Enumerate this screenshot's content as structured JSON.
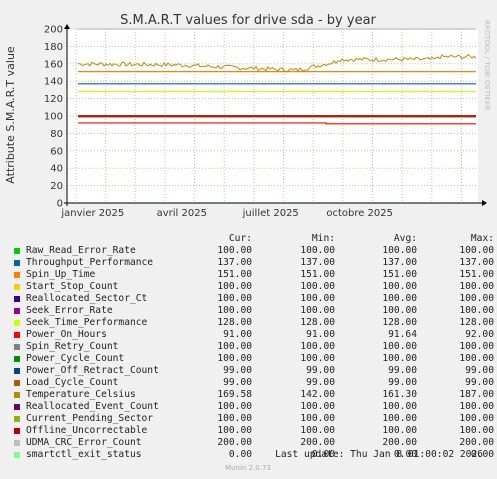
{
  "chart_data": {
    "type": "line",
    "title": "S.M.A.R.T values for drive sda - by year",
    "ylabel": "Attribute S.M.A.R.T value",
    "side_label": "RRDTOOL / TOBI OETIKER",
    "ylim": [
      0,
      200
    ],
    "yticks": [
      0,
      20,
      40,
      60,
      80,
      100,
      120,
      140,
      160,
      180,
      200
    ],
    "x_tick_labels": [
      "janvier 2025",
      "avril 2025",
      "juillet 2025",
      "octobre 2025"
    ],
    "grid": true,
    "columns": [
      "Cur:",
      "Min:",
      "Avg:",
      "Max:"
    ],
    "series": [
      {
        "name": "Raw_Read_Error_Rate",
        "color": "#00cc00",
        "cur": "100.00",
        "min": "100.00",
        "avg": "100.00",
        "max": "100.00"
      },
      {
        "name": "Throughput_Performance",
        "color": "#0066b3",
        "cur": "137.00",
        "min": "137.00",
        "avg": "137.00",
        "max": "137.00"
      },
      {
        "name": "Spin_Up_Time",
        "color": "#ff8000",
        "cur": "151.00",
        "min": "151.00",
        "avg": "151.00",
        "max": "151.00"
      },
      {
        "name": "Start_Stop_Count",
        "color": "#ffcc00",
        "cur": "100.00",
        "min": "100.00",
        "avg": "100.00",
        "max": "100.00"
      },
      {
        "name": "Reallocated_Sector_Ct",
        "color": "#330099",
        "cur": "100.00",
        "min": "100.00",
        "avg": "100.00",
        "max": "100.00"
      },
      {
        "name": "Seek_Error_Rate",
        "color": "#990099",
        "cur": "100.00",
        "min": "100.00",
        "avg": "100.00",
        "max": "100.00"
      },
      {
        "name": "Seek_Time_Performance",
        "color": "#ccff00",
        "cur": "128.00",
        "min": "128.00",
        "avg": "128.00",
        "max": "128.00"
      },
      {
        "name": "Power_On_Hours",
        "color": "#ff0000",
        "cur": "91.00",
        "min": "91.00",
        "avg": "91.64",
        "max": "92.00"
      },
      {
        "name": "Spin_Retry_Count",
        "color": "#808080",
        "cur": "100.00",
        "min": "100.00",
        "avg": "100.00",
        "max": "100.00"
      },
      {
        "name": "Power_Cycle_Count",
        "color": "#008f00",
        "cur": "100.00",
        "min": "100.00",
        "avg": "100.00",
        "max": "100.00"
      },
      {
        "name": "Power_Off_Retract_Count",
        "color": "#00487d",
        "cur": "99.00",
        "min": "99.00",
        "avg": "99.00",
        "max": "99.00"
      },
      {
        "name": "Load_Cycle_Count",
        "color": "#b35a00",
        "cur": "99.00",
        "min": "99.00",
        "avg": "99.00",
        "max": "99.00"
      },
      {
        "name": "Temperature_Celsius",
        "color": "#b38f00",
        "cur": "169.58",
        "min": "142.00",
        "avg": "161.30",
        "max": "187.00"
      },
      {
        "name": "Reallocated_Event_Count",
        "color": "#6b006b",
        "cur": "100.00",
        "min": "100.00",
        "avg": "100.00",
        "max": "100.00"
      },
      {
        "name": "Current_Pending_Sector",
        "color": "#8fb300",
        "cur": "100.00",
        "min": "100.00",
        "avg": "100.00",
        "max": "100.00"
      },
      {
        "name": "Offline_Uncorrectable",
        "color": "#b30000",
        "cur": "100.00",
        "min": "100.00",
        "avg": "100.00",
        "max": "100.00"
      },
      {
        "name": "UDMA_CRC_Error_Count",
        "color": "#bebebe",
        "cur": "200.00",
        "min": "200.00",
        "avg": "200.00",
        "max": "200.00"
      },
      {
        "name": "smartctl_exit_status",
        "color": "#80ff80",
        "cur": "0.00",
        "min": "0.00",
        "avg": "0.00",
        "max": "0.00"
      }
    ]
  },
  "last_update": "Last update: Thu Jan  8 01:00:02 2026",
  "footer": "Munin 2.0.73"
}
